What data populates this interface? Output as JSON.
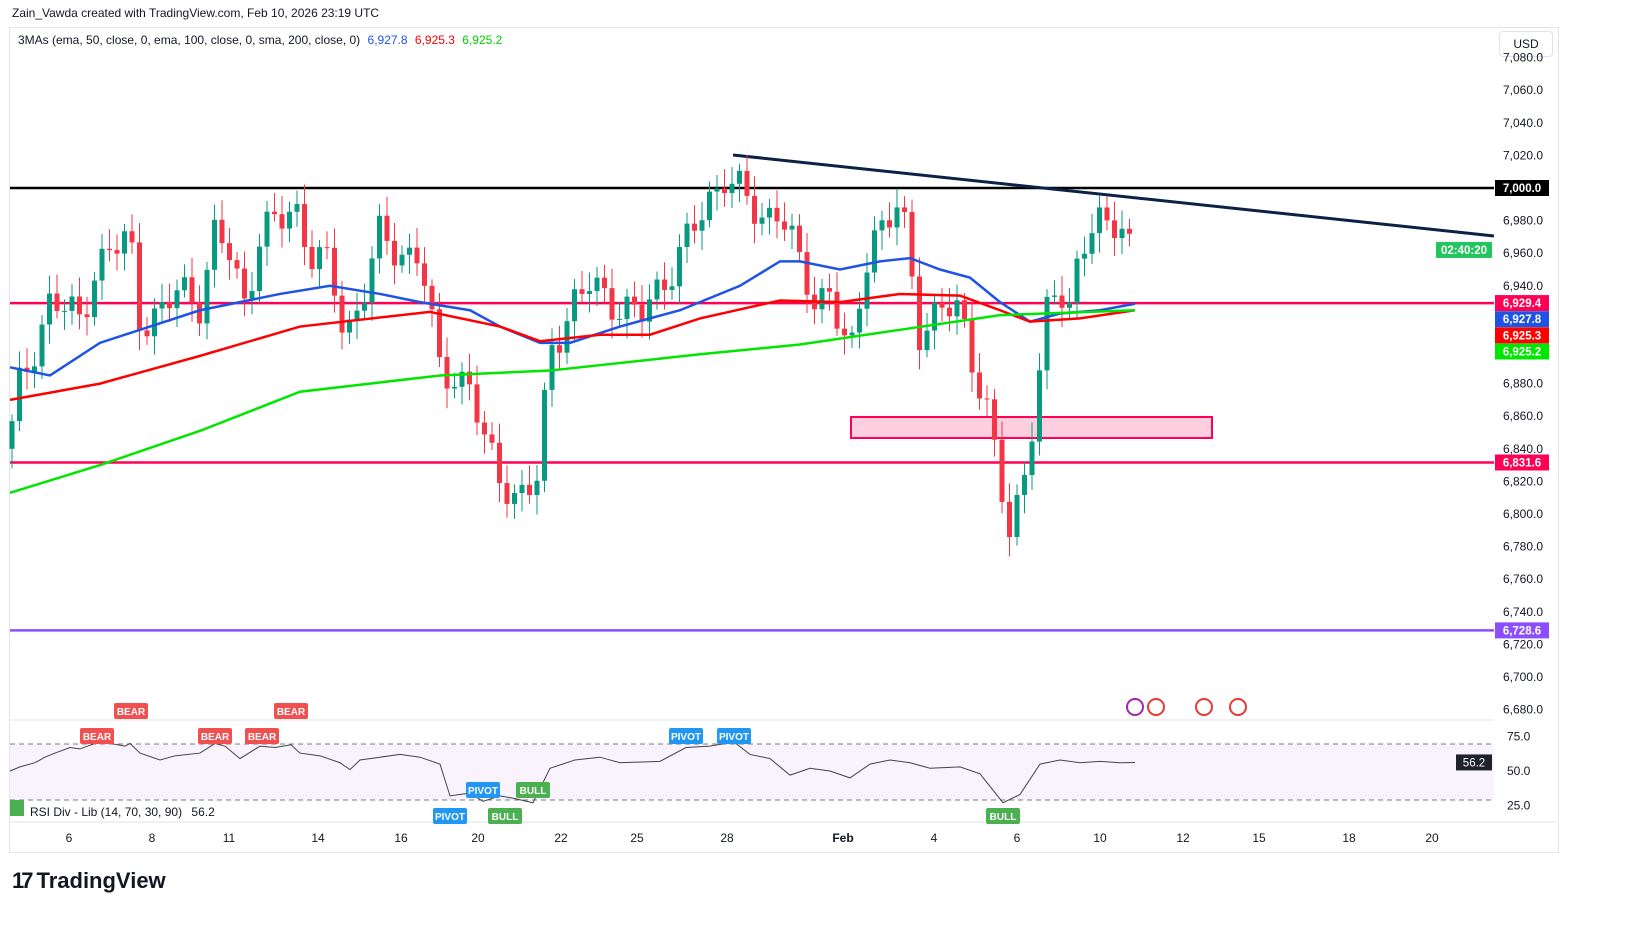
{
  "header": {
    "credit": "Zain_Vawda created with TradingView.com, Feb 10, 2026 23:19 UTC"
  },
  "legend": {
    "ma_label": "3MAs (ema, 50, close, 0, ema, 100, close, 0, sma, 200, close, 0)",
    "ema50": "6,927.8",
    "ema100": "6,925.3",
    "sma200": "6,925.2"
  },
  "currency": "USD",
  "rsi": {
    "label": "RSI Div - Lib (14, 70, 30, 90)",
    "value": "56.2",
    "axis": [
      "75.0",
      "50.0",
      "25.0"
    ],
    "tags": [
      {
        "t": "BEAR",
        "x": 97
      },
      {
        "t": "BEAR",
        "x": 131
      },
      {
        "t": "BEAR",
        "x": 215
      },
      {
        "t": "BEAR",
        "x": 262
      },
      {
        "t": "BEAR",
        "x": 291
      },
      {
        "t": "PIVOT",
        "x": 450,
        "below": true
      },
      {
        "t": "PIVOT",
        "x": 483,
        "below": true
      },
      {
        "t": "BULL",
        "x": 505,
        "below": true
      },
      {
        "t": "BULL",
        "x": 533,
        "below": true
      },
      {
        "t": "PIVOT",
        "x": 686
      },
      {
        "t": "PIVOT",
        "x": 734
      },
      {
        "t": "BULL",
        "x": 1003,
        "below": true
      }
    ]
  },
  "brand": "TradingView",
  "colors": {
    "ema50": "#1e53e5",
    "ema100": "#ff0000",
    "sma200": "#00e600",
    "support": "#ff0055",
    "purple": "#8c4dff",
    "bull": "#089981",
    "bear": "#f23645",
    "trend": "#0c2146"
  },
  "chart_data": {
    "type": "candlestick",
    "title": "",
    "ylim": [
      6670,
      7090
    ],
    "y_ticks": [
      "7,080.0",
      "7,060.0",
      "7,040.0",
      "7,020.0",
      "6,980.0",
      "6,960.0",
      "6,940.0",
      "6,880.0",
      "6,860.0",
      "6,840.0",
      "6,820.0",
      "6,800.0",
      "6,780.0",
      "6,760.0",
      "6,740.0",
      "6,720.0",
      "6,700.0",
      "6,680.0"
    ],
    "x_ticks": [
      "6",
      "8",
      "11",
      "14",
      "16",
      "20",
      "22",
      "25",
      "28",
      "Feb",
      "4",
      "6",
      "10",
      "12",
      "15",
      "18",
      "20"
    ],
    "price_path": [
      [
        10,
        6840
      ],
      [
        15,
        6870
      ],
      [
        50,
        6930
      ],
      [
        80,
        6920
      ],
      [
        95,
        6950
      ],
      [
        110,
        6960
      ],
      [
        130,
        6970
      ],
      [
        140,
        6920
      ],
      [
        160,
        6920
      ],
      [
        180,
        6940
      ],
      [
        200,
        6930
      ],
      [
        215,
        6970
      ],
      [
        230,
        6960
      ],
      [
        245,
        6930
      ],
      [
        260,
        6970
      ],
      [
        280,
        6980
      ],
      [
        295,
        6990
      ],
      [
        310,
        6960
      ],
      [
        330,
        6950
      ],
      [
        345,
        6910
      ],
      [
        360,
        6930
      ],
      [
        380,
        6970
      ],
      [
        400,
        6960
      ],
      [
        420,
        6960
      ],
      [
        438,
        6890
      ],
      [
        470,
        6880
      ],
      [
        485,
        6840
      ],
      [
        515,
        6810
      ],
      [
        540,
        6820
      ],
      [
        548,
        6900
      ],
      [
        575,
        6930
      ],
      [
        590,
        6940
      ],
      [
        640,
        6920
      ],
      [
        660,
        6940
      ],
      [
        690,
        6970
      ],
      [
        725,
        7010
      ],
      [
        760,
        6980
      ],
      [
        780,
        6990
      ],
      [
        800,
        6950
      ],
      [
        815,
        6930
      ],
      [
        830,
        6940
      ],
      [
        850,
        6890
      ],
      [
        870,
        6970
      ],
      [
        900,
        6990
      ],
      [
        920,
        6910
      ],
      [
        940,
        6930
      ],
      [
        960,
        6920
      ],
      [
        990,
        6860
      ],
      [
        1010,
        6780
      ],
      [
        1020,
        6810
      ],
      [
        1040,
        6890
      ],
      [
        1050,
        6940
      ],
      [
        1070,
        6920
      ],
      [
        1080,
        6970
      ],
      [
        1095,
        6980
      ],
      [
        1125,
        6970
      ],
      [
        1135,
        6962
      ]
    ],
    "series": [
      {
        "name": "EMA 50",
        "last": "6,927.8",
        "values": [
          [
            10,
            6890
          ],
          [
            50,
            6885
          ],
          [
            100,
            6905
          ],
          [
            200,
            6925
          ],
          [
            280,
            6935
          ],
          [
            330,
            6940
          ],
          [
            380,
            6935
          ],
          [
            420,
            6930
          ],
          [
            470,
            6925
          ],
          [
            500,
            6915
          ],
          [
            540,
            6905
          ],
          [
            570,
            6905
          ],
          [
            620,
            6915
          ],
          [
            680,
            6925
          ],
          [
            740,
            6940
          ],
          [
            780,
            6955
          ],
          [
            800,
            6955
          ],
          [
            840,
            6950
          ],
          [
            880,
            6955
          ],
          [
            910,
            6957
          ],
          [
            940,
            6950
          ],
          [
            970,
            6945
          ],
          [
            1000,
            6930
          ],
          [
            1030,
            6918
          ],
          [
            1060,
            6923
          ],
          [
            1100,
            6925
          ],
          [
            1135,
            6929
          ]
        ]
      },
      {
        "name": "EMA 100",
        "last": "6,925.3",
        "values": [
          [
            10,
            6870
          ],
          [
            100,
            6880
          ],
          [
            200,
            6897
          ],
          [
            300,
            6915
          ],
          [
            430,
            6924
          ],
          [
            500,
            6915
          ],
          [
            540,
            6906
          ],
          [
            600,
            6910
          ],
          [
            650,
            6910
          ],
          [
            700,
            6920
          ],
          [
            780,
            6931
          ],
          [
            840,
            6930
          ],
          [
            900,
            6935
          ],
          [
            960,
            6934
          ],
          [
            1000,
            6925
          ],
          [
            1030,
            6918
          ],
          [
            1080,
            6920
          ],
          [
            1135,
            6925
          ]
        ]
      },
      {
        "name": "SMA 200",
        "last": "6,925.2",
        "values": [
          [
            10,
            6813
          ],
          [
            100,
            6830
          ],
          [
            200,
            6851
          ],
          [
            300,
            6875
          ],
          [
            440,
            6885
          ],
          [
            550,
            6888
          ],
          [
            700,
            6898
          ],
          [
            800,
            6904
          ],
          [
            900,
            6913
          ],
          [
            1000,
            6922
          ],
          [
            1135,
            6925
          ]
        ]
      }
    ],
    "levels": [
      {
        "label": "7,000.0",
        "value": 7000,
        "color": "#000000"
      },
      {
        "label": "6,929.4",
        "value": 6929.4,
        "color": "#ff0055"
      },
      {
        "label": "6,831.6",
        "value": 6831.6,
        "color": "#ff0055"
      },
      {
        "label": "6,728.6",
        "value": 6728.6,
        "color": "#8c4dff"
      }
    ],
    "countdown": {
      "label": "02:40:20",
      "value": 6962
    },
    "rsi_path": [
      [
        10,
        50
      ],
      [
        20,
        53
      ],
      [
        35,
        56
      ],
      [
        45,
        60
      ],
      [
        55,
        63
      ],
      [
        70,
        67
      ],
      [
        80,
        66
      ],
      [
        95,
        70
      ],
      [
        110,
        70
      ],
      [
        125,
        68
      ],
      [
        130,
        70
      ],
      [
        140,
        63
      ],
      [
        160,
        58
      ],
      [
        175,
        61
      ],
      [
        200,
        63
      ],
      [
        215,
        70
      ],
      [
        225,
        68
      ],
      [
        240,
        59
      ],
      [
        260,
        68
      ],
      [
        275,
        67
      ],
      [
        291,
        69
      ],
      [
        300,
        63
      ],
      [
        320,
        61
      ],
      [
        340,
        56
      ],
      [
        350,
        51
      ],
      [
        360,
        58
      ],
      [
        380,
        60
      ],
      [
        400,
        62
      ],
      [
        420,
        60
      ],
      [
        440,
        55
      ],
      [
        450,
        32
      ],
      [
        470,
        34
      ],
      [
        483,
        28
      ],
      [
        500,
        32
      ],
      [
        515,
        30
      ],
      [
        533,
        27
      ],
      [
        550,
        52
      ],
      [
        575,
        58
      ],
      [
        600,
        60
      ],
      [
        620,
        56
      ],
      [
        660,
        57
      ],
      [
        686,
        67
      ],
      [
        710,
        68
      ],
      [
        734,
        71
      ],
      [
        750,
        62
      ],
      [
        770,
        59
      ],
      [
        790,
        47
      ],
      [
        810,
        52
      ],
      [
        830,
        50
      ],
      [
        850,
        45
      ],
      [
        870,
        55
      ],
      [
        890,
        58
      ],
      [
        910,
        56
      ],
      [
        930,
        52
      ],
      [
        960,
        53
      ],
      [
        980,
        48
      ],
      [
        1003,
        27
      ],
      [
        1020,
        33
      ],
      [
        1040,
        55
      ],
      [
        1060,
        58
      ],
      [
        1080,
        56
      ],
      [
        1100,
        57
      ],
      [
        1120,
        56
      ],
      [
        1135,
        56.2
      ]
    ]
  }
}
